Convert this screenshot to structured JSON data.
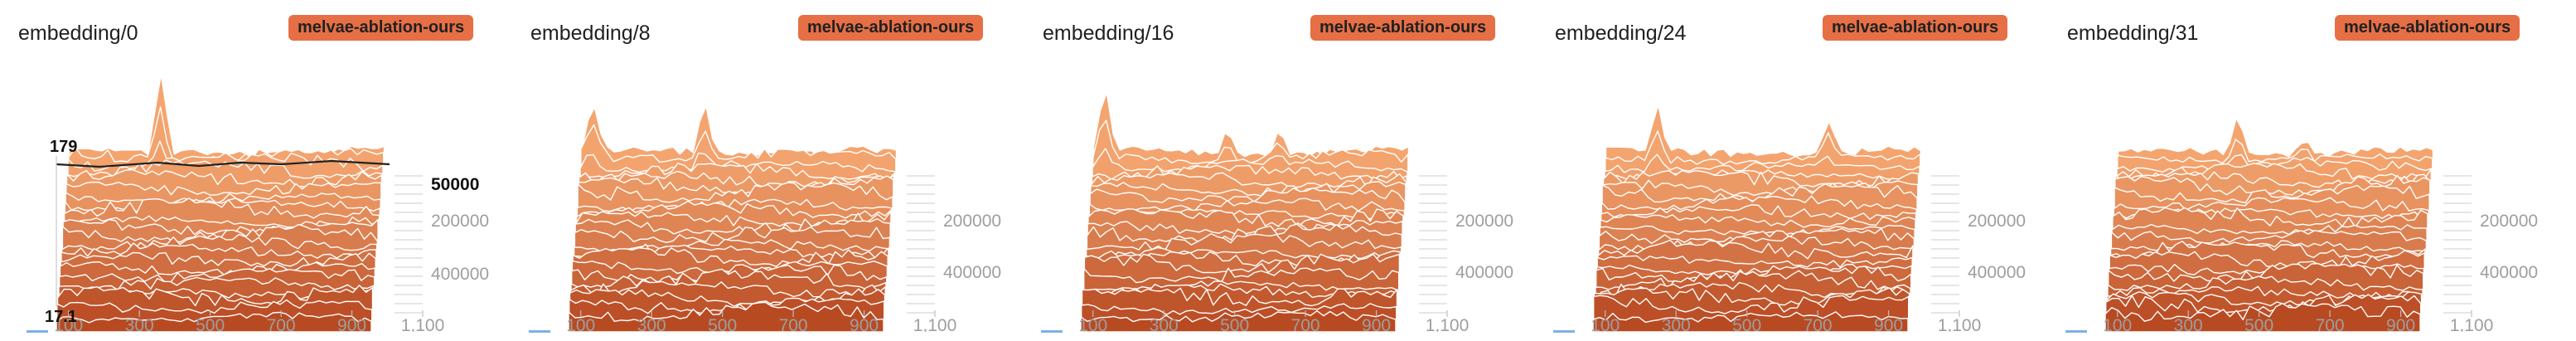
{
  "run_tag": "melvae-ablation-ours",
  "colors": {
    "band_light": "#f4a56f",
    "band_dark": "#b84a22",
    "run_tag_bg": "#e66f45",
    "line": "#ffffff",
    "axis_text": "#9e9e9e",
    "hover_line": "#222222"
  },
  "chart_data": [
    {
      "type": "area",
      "title": "embedding/0",
      "x_ticks": [
        "100",
        "300",
        "500",
        "700",
        "900",
        "1,100"
      ],
      "x_range": [
        0,
        1100
      ],
      "y_ticks": [
        "50000",
        "200000",
        "400000"
      ],
      "hover": {
        "value_top": "179",
        "value_bottom": "17.1",
        "highlighted_tick": "50000"
      },
      "spikes": [
        {
          "step": 320,
          "height": 0.62
        }
      ],
      "seed": 11
    },
    {
      "type": "area",
      "title": "embedding/8",
      "x_ticks": [
        "100",
        "300",
        "500",
        "700",
        "900",
        "1,100"
      ],
      "x_range": [
        0,
        1100
      ],
      "y_ticks": [
        "200000",
        "400000"
      ],
      "spikes": [
        {
          "step": 40,
          "height": 0.4
        },
        {
          "step": 430,
          "height": 0.4
        }
      ],
      "seed": 23
    },
    {
      "type": "area",
      "title": "embedding/16",
      "x_ticks": [
        "100",
        "300",
        "500",
        "700",
        "900",
        "1,100"
      ],
      "x_range": [
        0,
        1100
      ],
      "y_ticks": [
        "200000",
        "400000"
      ],
      "spikes": [
        {
          "step": 40,
          "height": 0.5
        },
        {
          "step": 470,
          "height": 0.2
        },
        {
          "step": 650,
          "height": 0.2
        }
      ],
      "seed": 37
    },
    {
      "type": "area",
      "title": "embedding/24",
      "x_ticks": [
        "100",
        "300",
        "500",
        "700",
        "900",
        "1,100"
      ],
      "x_range": [
        0,
        1100
      ],
      "y_ticks": [
        "200000",
        "400000"
      ],
      "spikes": [
        {
          "step": 180,
          "height": 0.35
        },
        {
          "step": 780,
          "height": 0.25
        }
      ],
      "seed": 41
    },
    {
      "type": "area",
      "title": "embedding/31",
      "x_ticks": [
        "100",
        "300",
        "500",
        "700",
        "900",
        "1,100"
      ],
      "x_range": [
        0,
        1100
      ],
      "y_ticks": [
        "200000",
        "400000"
      ],
      "spikes": [
        {
          "step": 420,
          "height": 0.3
        },
        {
          "step": 650,
          "height": 0.12
        }
      ],
      "seed": 53
    }
  ]
}
